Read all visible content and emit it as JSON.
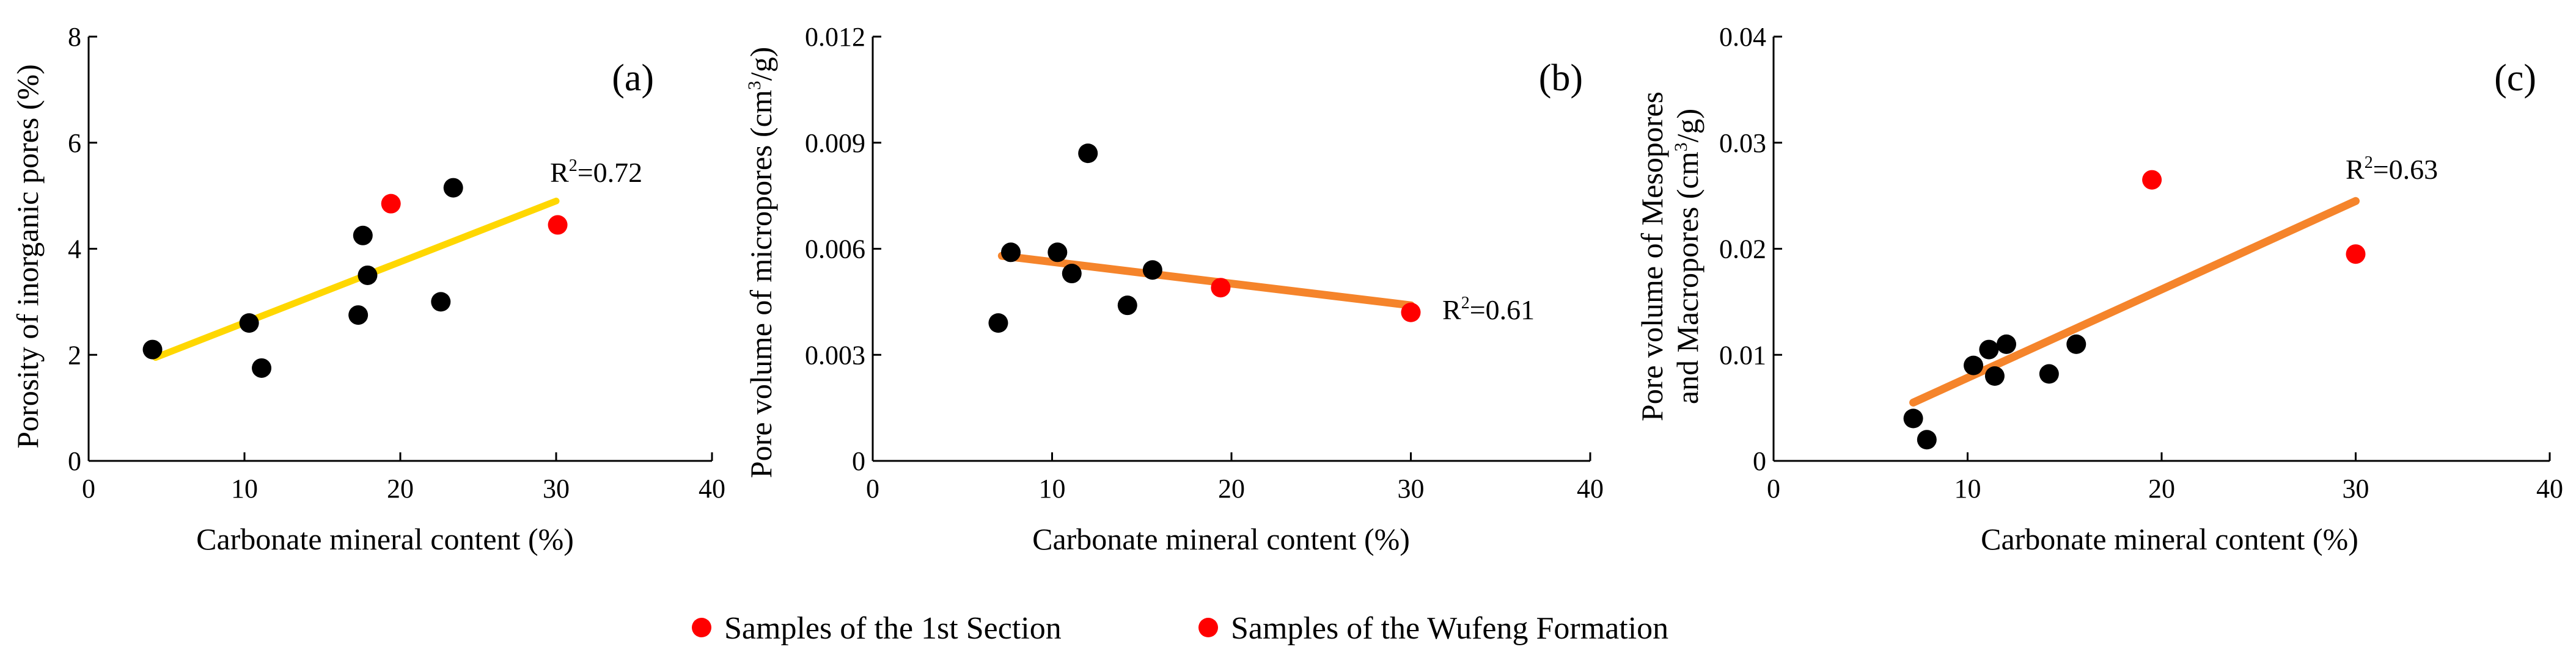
{
  "legend": {
    "items": [
      {
        "label": "Samples of the 1st Section",
        "color": "#ff0000"
      },
      {
        "label": "Samples of the Wufeng Formation",
        "color": "#ff0000"
      }
    ]
  },
  "chart_data": [
    {
      "type": "scatter",
      "panel_label": "(a)",
      "xlabel": "Carbonate mineral content (%)",
      "ylabel": "Porosity of inorganic pores (%)",
      "xlim": [
        0,
        40
      ],
      "ylim": [
        0,
        8
      ],
      "x_ticks": [
        "0",
        "10",
        "20",
        "30",
        "40"
      ],
      "y_ticks": [
        "0",
        "2",
        "4",
        "6",
        "8"
      ],
      "r2_prefix": "R",
      "r2_sup": "2",
      "r2_value": "=0.72",
      "trend_color": "#ffd700",
      "trendline": {
        "x": [
          4.3,
          30
        ],
        "y": [
          1.95,
          4.9
        ]
      },
      "series": [
        {
          "name": "Samples of the 1st Section",
          "color": "#000000",
          "x": [
            4.1,
            10.3,
            11.1,
            17.3,
            17.6,
            17.9,
            22.6,
            23.4
          ],
          "y": [
            2.1,
            2.6,
            1.75,
            2.75,
            4.25,
            3.5,
            3.0,
            5.15
          ]
        },
        {
          "name": "Samples of the Wufeng Formation",
          "color": "#ff0000",
          "x": [
            19.4,
            30.1
          ],
          "y": [
            4.85,
            4.45
          ]
        }
      ]
    },
    {
      "type": "scatter",
      "panel_label": "(b)",
      "xlabel": "Carbonate mineral content (%)",
      "ylabel": "Pore volume of micropores (cm3/g)",
      "ylabel_parts": {
        "pre": "Pore volume of micropores (cm",
        "sup": "3",
        "post": "/g)"
      },
      "xlim": [
        0,
        40
      ],
      "ylim": [
        0,
        0.012
      ],
      "x_ticks": [
        "0",
        "10",
        "20",
        "30",
        "40"
      ],
      "y_ticks": [
        "0",
        "0.003",
        "0.006",
        "0.009",
        "0.012"
      ],
      "r2_prefix": "R",
      "r2_sup": "2",
      "r2_value": "=0.61",
      "trend_color": "#f5842b",
      "trendline": {
        "x": [
          7.2,
          30
        ],
        "y": [
          0.0058,
          0.0044
        ]
      },
      "series": [
        {
          "name": "Samples of the 1st Section",
          "color": "#000000",
          "x": [
            7.0,
            7.7,
            10.3,
            11.1,
            12.0,
            14.2,
            15.6
          ],
          "y": [
            0.0039,
            0.0059,
            0.0059,
            0.0053,
            0.0087,
            0.0044,
            0.0054
          ]
        },
        {
          "name": "Samples of the Wufeng Formation",
          "color": "#ff0000",
          "x": [
            19.4,
            30.0
          ],
          "y": [
            0.0049,
            0.0042
          ]
        }
      ]
    },
    {
      "type": "scatter",
      "panel_label": "(c)",
      "xlabel": "Carbonate mineral content (%)",
      "ylabel_line1": "Pore volume of Mesopores",
      "ylabel_line2_parts": {
        "pre": "and Macropores (cm",
        "sup": "3",
        "post": "/g)"
      },
      "xlim": [
        0,
        40
      ],
      "ylim": [
        0,
        0.04
      ],
      "x_ticks": [
        "0",
        "10",
        "20",
        "30",
        "40"
      ],
      "y_ticks": [
        "0",
        "0.01",
        "0.02",
        "0.03",
        "0.04"
      ],
      "r2_prefix": "R",
      "r2_sup": "2",
      "r2_value": "=0.63",
      "trend_color": "#f5842b",
      "trendline": {
        "x": [
          7.2,
          30
        ],
        "y": [
          0.0055,
          0.0245
        ]
      },
      "series": [
        {
          "name": "Samples of the 1st Section",
          "color": "#000000",
          "x": [
            7.2,
            7.9,
            10.3,
            11.1,
            11.4,
            12.0,
            14.2,
            15.6
          ],
          "y": [
            0.004,
            0.002,
            0.009,
            0.0105,
            0.008,
            0.011,
            0.0082,
            0.011
          ]
        },
        {
          "name": "Samples of the Wufeng Formation",
          "color": "#ff0000",
          "x": [
            19.5,
            30.0
          ],
          "y": [
            0.0265,
            0.0195
          ]
        }
      ]
    }
  ]
}
